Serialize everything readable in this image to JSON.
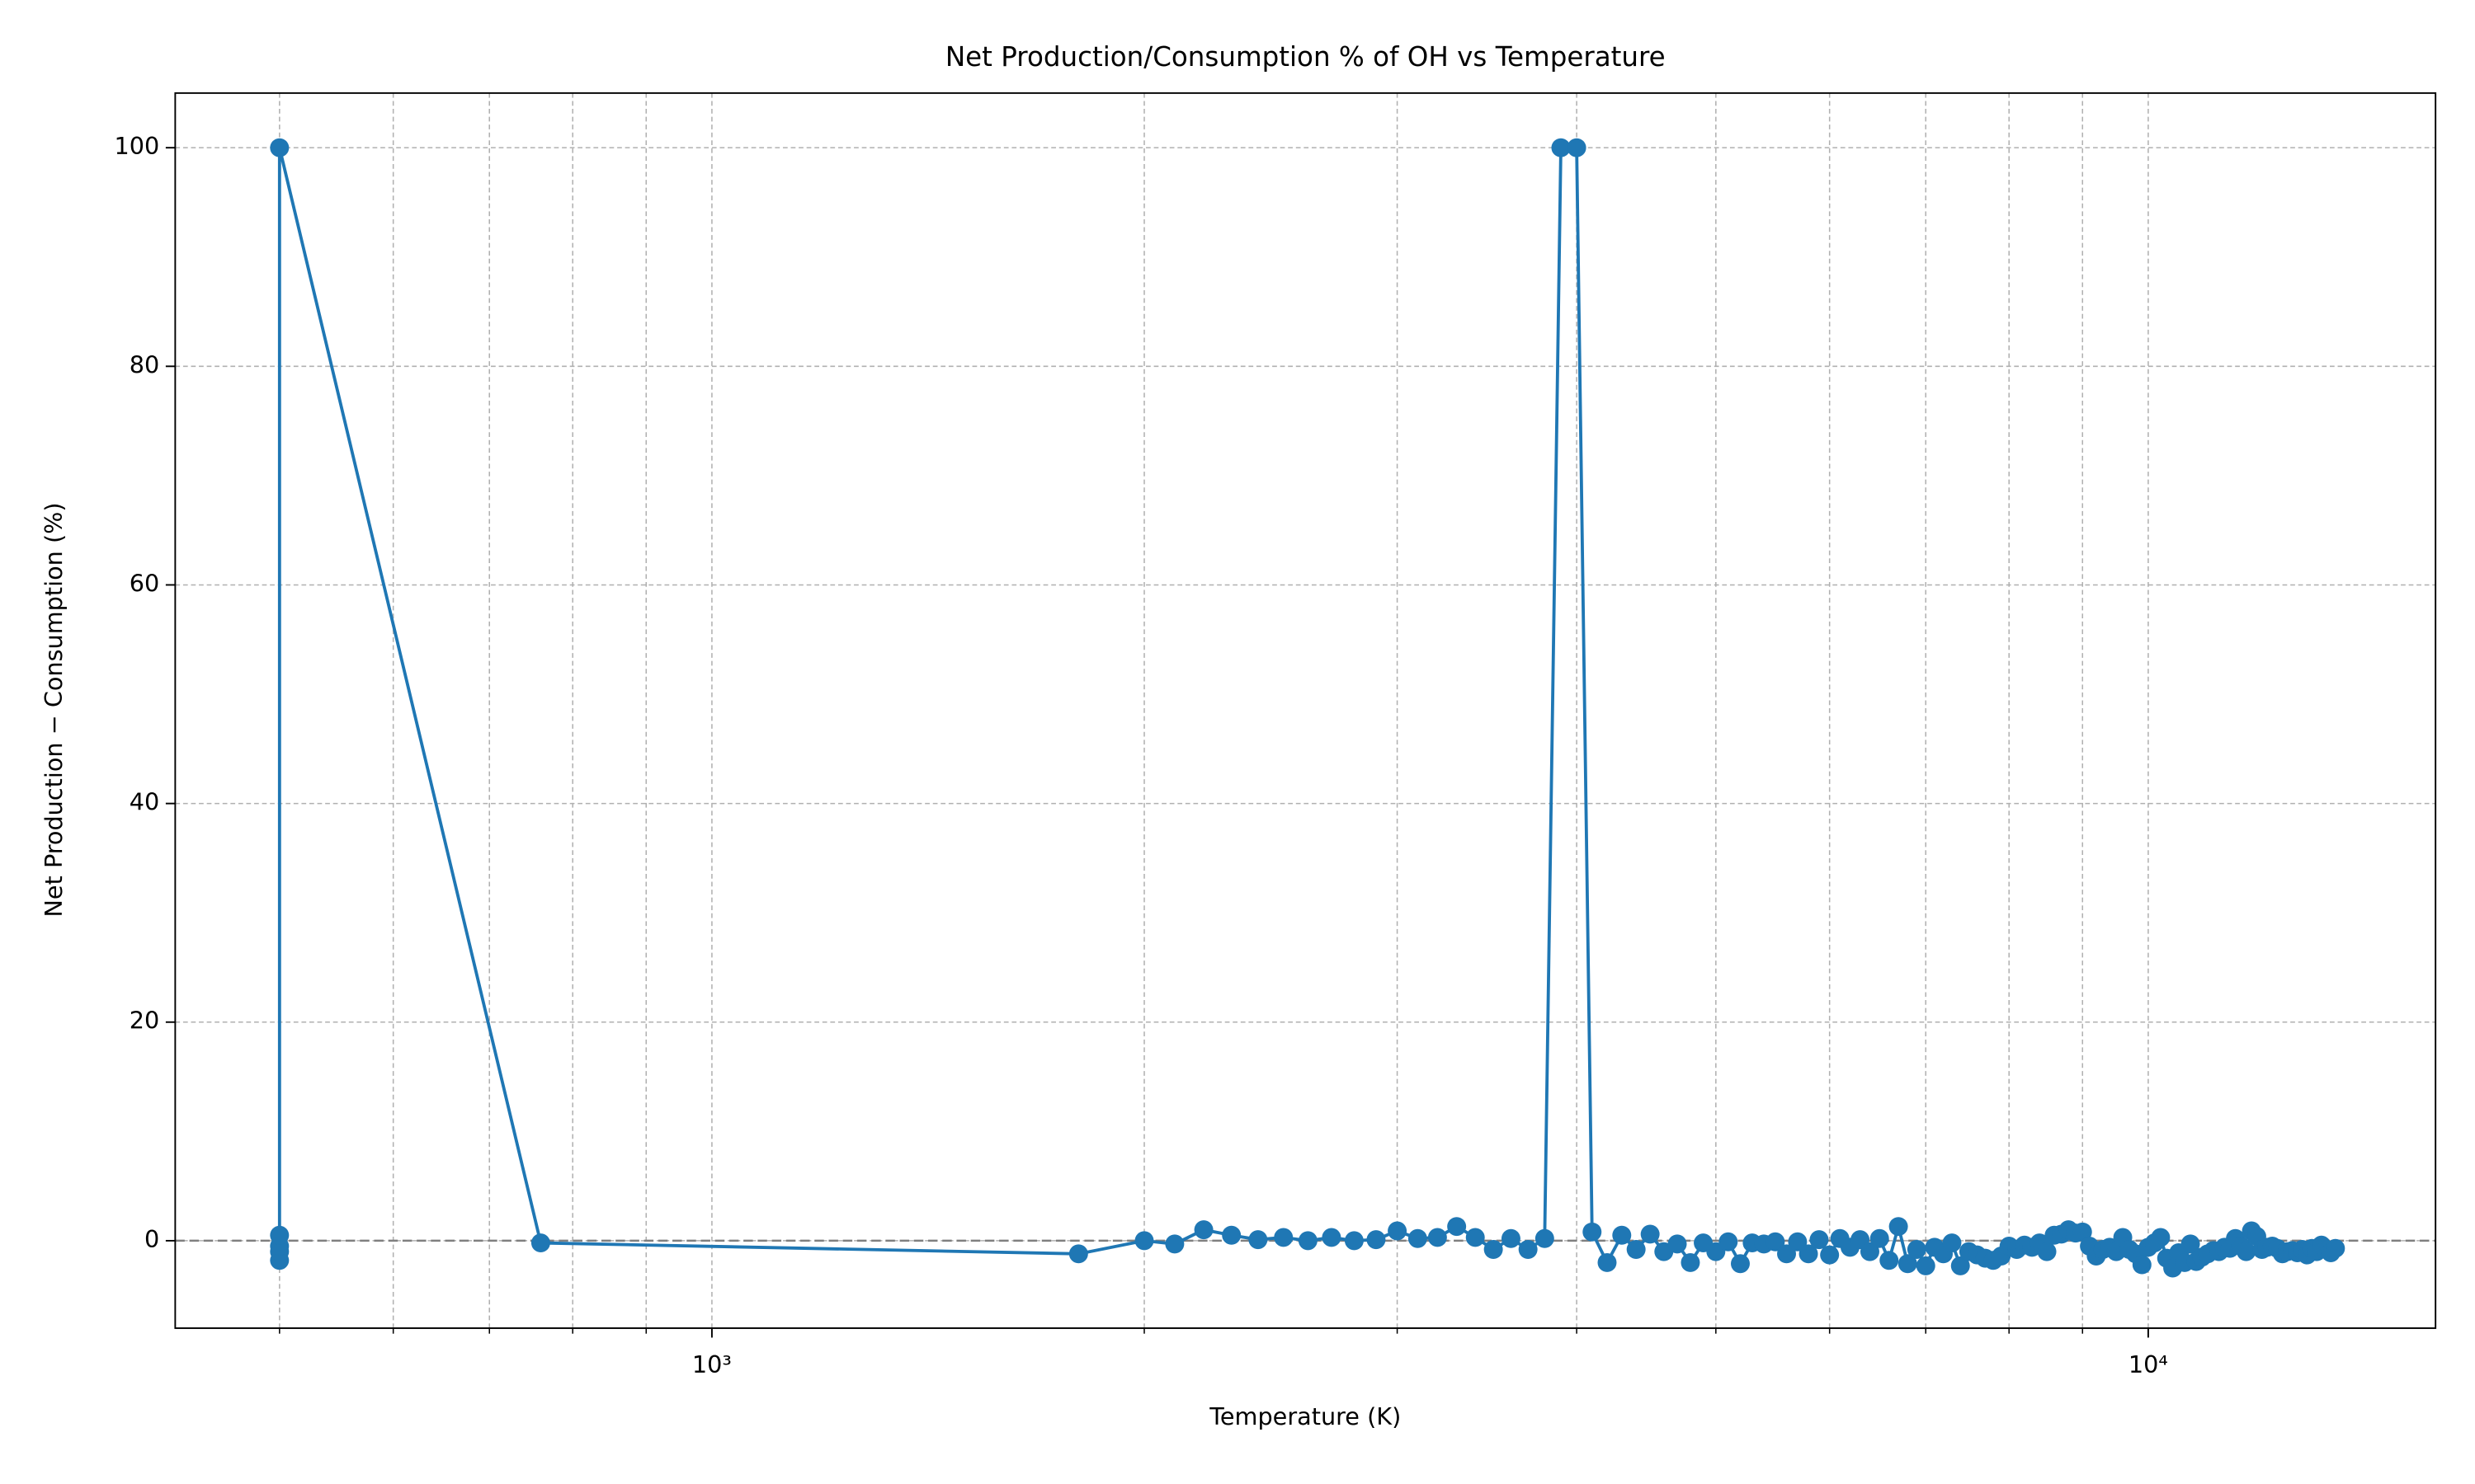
{
  "chart_data": {
    "type": "line",
    "title": "Net Production/Consumption % of OH vs Temperature",
    "x_label": "Temperature (K)",
    "y_label": "Net Production − Consumption (%)",
    "x_scale": "log",
    "grid": true,
    "color": "#1f77b4",
    "hline": 0,
    "hline_color": "#808080",
    "xlim": [
      423,
      15850
    ],
    "ylim": [
      -8,
      105
    ],
    "xticks": [
      {
        "value": 1000,
        "label": "10³"
      },
      {
        "value": 10000,
        "label": "10⁴"
      }
    ],
    "xminorticks": [
      500,
      600,
      700,
      800,
      900,
      2000,
      3000,
      4000,
      5000,
      6000,
      7000,
      8000,
      9000
    ],
    "yticks": [
      0,
      20,
      40,
      60,
      80,
      100
    ],
    "x": [
      500,
      500,
      500,
      500,
      500,
      760,
      1800,
      2000,
      2100,
      2200,
      2300,
      2400,
      2500,
      2600,
      2700,
      2800,
      2900,
      3000,
      3100,
      3200,
      3300,
      3400,
      3500,
      3600,
      3700,
      3800,
      3900,
      4000,
      4100,
      4200,
      4300,
      4400,
      4500,
      4600,
      4700,
      4800,
      4900,
      5000,
      5100,
      5200,
      5300,
      5400,
      5500,
      5600,
      5700,
      5800,
      5900,
      6000,
      6100,
      6200,
      6300,
      6400,
      6500,
      6600,
      6700,
      6800,
      6900,
      7000,
      7100,
      7200,
      7300,
      7400,
      7500,
      7600,
      7700,
      7800,
      7900,
      8000,
      8100,
      8200,
      8300,
      8400,
      8500,
      8600,
      8700,
      8800,
      8900,
      9000,
      9100,
      9200,
      9300,
      9400,
      9500,
      9600,
      9700,
      9800,
      9900,
      10000,
      10100,
      10200,
      10300,
      10400,
      10500,
      10600,
      10700,
      10800,
      10900,
      11000,
      11100,
      11200,
      11300,
      11400,
      11500,
      11600,
      11700,
      11800,
      11900,
      12000,
      12100,
      12200,
      12300,
      12400,
      12500,
      12600,
      12700,
      12800,
      12900,
      13000,
      13100,
      13200,
      13300,
      13400,
      13500
    ],
    "values": [
      -1.8,
      -1,
      -0.5,
      0.5,
      100,
      -0.2,
      -1.2,
      0,
      -0.3,
      1,
      0.5,
      0.1,
      0.3,
      0,
      0.3,
      0,
      0.1,
      0.9,
      0.2,
      0.3,
      1.3,
      0.3,
      -0.8,
      0.2,
      -0.8,
      0.2,
      100,
      100,
      0.8,
      -2,
      0.5,
      -0.8,
      0.6,
      -1,
      -0.3,
      -2,
      -0.2,
      -1,
      -0.1,
      -2.1,
      -0.2,
      -0.3,
      -0.1,
      -1.2,
      -0.1,
      -1.2,
      0.1,
      -1.3,
      0.2,
      -0.6,
      0.1,
      -1,
      0.2,
      -1.8,
      1.3,
      -2.1,
      -0.8,
      -2.3,
      -0.6,
      -1.2,
      -0.2,
      -2.3,
      -1,
      -1.3,
      -1.6,
      -1.8,
      -1.4,
      -0.5,
      -0.8,
      -0.4,
      -0.6,
      -0.2,
      -1,
      0.5,
      0.6,
      1,
      0.7,
      0.8,
      -0.5,
      -1.4,
      -0.8,
      -0.6,
      -1,
      0.3,
      -0.8,
      -1.2,
      -2.2,
      -0.6,
      -0.2,
      0.3,
      -1.6,
      -2.5,
      -1.1,
      -2,
      -0.3,
      -1.9,
      -1.5,
      -1.2,
      -0.9,
      -1,
      -0.6,
      -0.7,
      0.2,
      -0.5,
      -1,
      0.9,
      0.4,
      -0.8,
      -0.6,
      -0.5,
      -0.7,
      -1.2,
      -1.0,
      -0.9,
      -1.1,
      -0.8,
      -1.3,
      -0.7,
      -1.0,
      -0.4,
      -0.8,
      -1.1,
      -0.7
    ]
  }
}
